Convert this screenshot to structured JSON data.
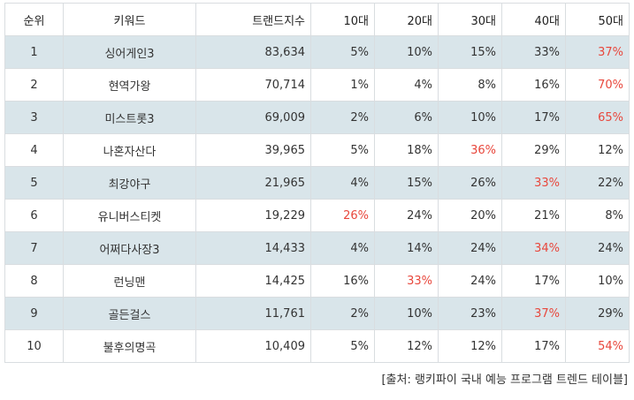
{
  "table": {
    "headers": [
      "순위",
      "키워드",
      "트랜드지수",
      "10대",
      "20대",
      "30대",
      "40대",
      "50대"
    ],
    "rows": [
      {
        "rank": "1",
        "keyword": "싱어게인3",
        "index": "83,634",
        "ages": [
          "5%",
          "10%",
          "15%",
          "33%",
          "37%"
        ],
        "highlight": 4
      },
      {
        "rank": "2",
        "keyword": "현역가왕",
        "index": "70,714",
        "ages": [
          "1%",
          "4%",
          "8%",
          "16%",
          "70%"
        ],
        "highlight": 4
      },
      {
        "rank": "3",
        "keyword": "미스트롯3",
        "index": "69,009",
        "ages": [
          "2%",
          "6%",
          "10%",
          "17%",
          "65%"
        ],
        "highlight": 4
      },
      {
        "rank": "4",
        "keyword": "나혼자산다",
        "index": "39,965",
        "ages": [
          "5%",
          "18%",
          "36%",
          "29%",
          "12%"
        ],
        "highlight": 2
      },
      {
        "rank": "5",
        "keyword": "최강야구",
        "index": "21,965",
        "ages": [
          "4%",
          "15%",
          "26%",
          "33%",
          "22%"
        ],
        "highlight": 3
      },
      {
        "rank": "6",
        "keyword": "유니버스티켓",
        "index": "19,229",
        "ages": [
          "26%",
          "24%",
          "20%",
          "21%",
          "8%"
        ],
        "highlight": 0
      },
      {
        "rank": "7",
        "keyword": "어쩌다사장3",
        "index": "14,433",
        "ages": [
          "4%",
          "14%",
          "24%",
          "34%",
          "24%"
        ],
        "highlight": 3
      },
      {
        "rank": "8",
        "keyword": "런닝맨",
        "index": "14,425",
        "ages": [
          "16%",
          "33%",
          "24%",
          "17%",
          "10%"
        ],
        "highlight": 1
      },
      {
        "rank": "9",
        "keyword": "골든걸스",
        "index": "11,761",
        "ages": [
          "2%",
          "10%",
          "23%",
          "37%",
          "29%"
        ],
        "highlight": 3
      },
      {
        "rank": "10",
        "keyword": "불후의명곡",
        "index": "10,409",
        "ages": [
          "5%",
          "12%",
          "12%",
          "17%",
          "54%"
        ],
        "highlight": 4
      }
    ]
  },
  "source": "[출처: 랭키파이 국내 예능 프로그램 트렌드 테이블]",
  "colors": {
    "highlight": "#e8473c",
    "band": "#d9e5ea",
    "border": "#d9dde0"
  }
}
